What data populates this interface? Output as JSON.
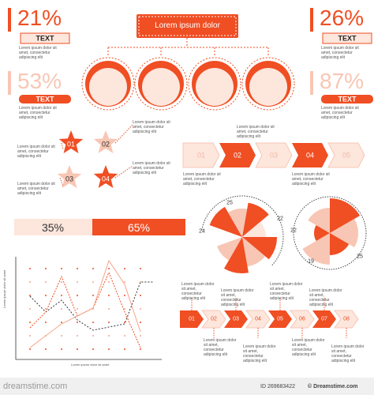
{
  "stats": [
    {
      "value": "21%",
      "label": "TEXT",
      "text": "Lorem ipsum dolor sit amet, consectetur adipiscing elit"
    },
    {
      "value": "53%",
      "label": "TEXT",
      "text": "Lorem ipsum dolor sit amet, consectetur adipiscing elit"
    },
    {
      "value": "26%",
      "label": "TEXT",
      "text": "Lorem ipsum dolor sit amet, consectetur adipiscing elit"
    },
    {
      "value": "87%",
      "label": "TEXT",
      "text": "Lorem ipsum dolor sit amet, consectetur adipiscing elit"
    }
  ],
  "org": {
    "title": "Lorem ipsum dolor"
  },
  "stars": [
    {
      "label": "01",
      "text": "Lorem ipsum dolor sit amet, consectetur adipiscing elit"
    },
    {
      "label": "02",
      "text": "Lorem ipsum dolor sit amet, consectetur adipiscing elit"
    },
    {
      "label": "03",
      "text": "Lorem ipsum dolor sit amet, consectetur adipiscing elit"
    },
    {
      "label": "04",
      "text": "Lorem ipsum dolor sit amet, consectetur adipiscing elit"
    }
  ],
  "steps": {
    "labels": [
      "01",
      "02",
      "03",
      "04",
      "05"
    ],
    "texts": [
      "Lorem ipsum dolor sit amet, consectetur adipiscing elit",
      "Lorem ipsum dolor sit amet, consectetur adipiscing elit",
      "Lorem ipsum dolor sit amet, consectetur adipiscing elit"
    ]
  },
  "split_bar": [
    "35%",
    "65%"
  ],
  "pie1_labels": [
    "25",
    "22",
    "24"
  ],
  "pie2_labels": [
    "22",
    "25",
    "19"
  ],
  "line_chart": {
    "y_label": "Lorem ipsum dolor sit amet",
    "x_label": "Lorem ipsum dolor sit amet"
  },
  "arrows": {
    "labels": [
      "01",
      "02",
      "03",
      "04",
      "05",
      "06",
      "07",
      "08"
    ],
    "texts": [
      "Lorem ipsum dolor sit amet, consectetur adipiscing elit",
      "Lorem ipsum dolor sit amet, consectetur adipiscing elit",
      "Lorem ipsum dolor sit amet, consectetur adipiscing elit",
      "Lorem ipsum dolor sit amet, consectetur adipiscing elit",
      "Lorem ipsum dolor sit amet, consectetur adipiscing elit",
      "Lorem ipsum dolor sit amet, consectetur adipiscing elit",
      "Lorem ipsum dolor sit amet, consectetur adipiscing elit",
      "Lorem ipsum dolor sit amet, consectetur adipiscing elit"
    ]
  },
  "footer": {
    "site": "dreamstime.com",
    "id": "ID 269683422",
    "credit": "© Dreamstime.com"
  }
}
